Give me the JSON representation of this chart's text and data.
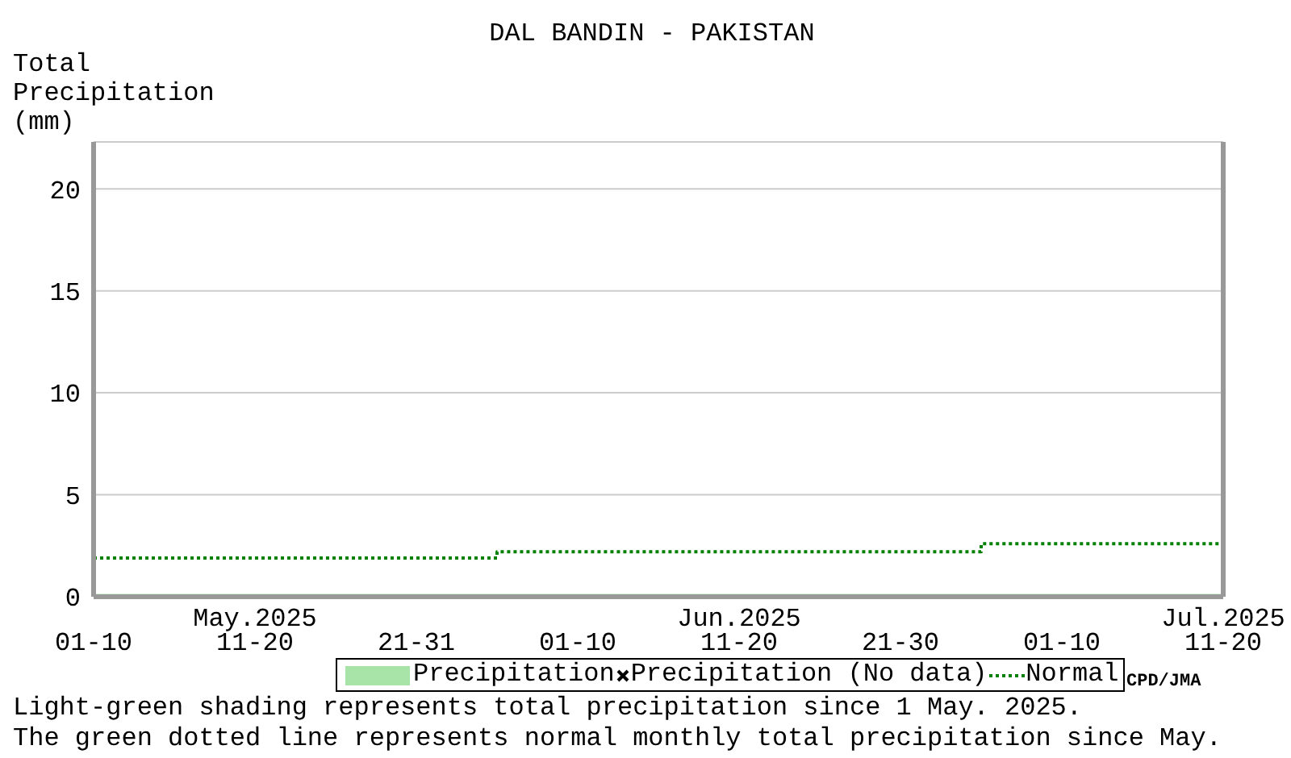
{
  "chart_data": {
    "type": "area",
    "title": "DAL BANDIN - PAKISTAN",
    "ylabel": "Total\nPrecipitation\n(mm)",
    "categories": [
      "01-10",
      "May.2025\n11-20",
      "21-31",
      "01-10",
      "Jun.2025\n11-20",
      "21-30",
      "01-10",
      "Jul.2025\n11-20"
    ],
    "series": [
      {
        "name": "Precipitation",
        "color": "#a8e4a8",
        "values": [
          0.1,
          0.1,
          0.1,
          0.1,
          0.1,
          0.1,
          0.1,
          0.1
        ]
      },
      {
        "name": "Precipitation (No data)",
        "type": "scatter",
        "color": "#000000",
        "marker": "cross",
        "values": [
          null,
          null,
          null,
          null,
          null,
          null,
          null,
          null
        ]
      },
      {
        "name": "Normal",
        "type": "step",
        "color": "#008000",
        "line_style": "dotted",
        "values": [
          1.9,
          1.9,
          1.9,
          2.2,
          2.2,
          2.2,
          2.6,
          2.6
        ]
      }
    ],
    "ylim": [
      0,
      22.3
    ],
    "yticks": [
      0,
      5,
      10,
      15,
      20
    ],
    "grid": "y",
    "legend": "bottom",
    "annotations": [
      "CPD/JMA",
      "Light-green shading represents total precipitation since 1 May. 2025.",
      "The green dotted line represents normal monthly total precipitation since May."
    ]
  }
}
